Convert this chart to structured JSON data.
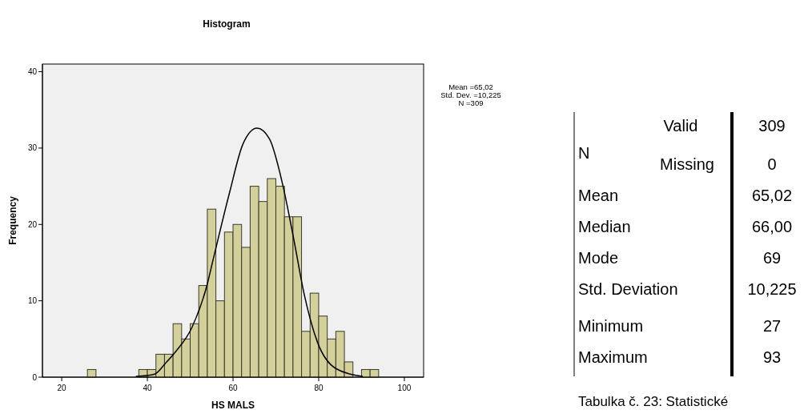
{
  "chart_data": [
    {
      "type": "histogram",
      "title": "Histogram",
      "xlabel": "HS MALS",
      "ylabel": "Frequency",
      "xlim": [
        15.5,
        104.5
      ],
      "ylim": [
        0,
        41
      ],
      "xticks": [
        20,
        40,
        60,
        80,
        100
      ],
      "yticks": [
        0,
        10,
        20,
        30,
        40
      ],
      "grid": false,
      "annotations": [
        "Mean =65,02",
        "Std. Dev. =10,225",
        "N =309"
      ],
      "series": [
        {
          "type": "histogram",
          "color": "#d4d09c",
          "bins": [
            26,
            28,
            30,
            32,
            34,
            36,
            38,
            40,
            42,
            44,
            46,
            48,
            50,
            52,
            54,
            56,
            58,
            60,
            62,
            64,
            66,
            68,
            70,
            72,
            74,
            76,
            78,
            80,
            82,
            84,
            86,
            88,
            90,
            92,
            94
          ],
          "values": [
            1,
            0,
            0,
            0,
            0,
            0,
            1,
            1,
            3,
            3,
            7,
            5,
            7,
            12,
            22,
            10,
            19,
            20,
            17,
            25,
            23,
            26,
            25,
            21,
            21,
            6,
            11,
            8,
            5,
            6,
            2,
            0,
            1,
            1
          ]
        },
        {
          "type": "line",
          "color": "#000000",
          "x": [
            37.3,
            41.7,
            44.2,
            46.7,
            50.4,
            53.9,
            55.4,
            59.2,
            62.3,
            65.6,
            68.5,
            71.6,
            74.1,
            76.6,
            79.7,
            84.1,
            90.3
          ],
          "values": [
            0.1,
            0.4,
            1.8,
            3.4,
            6.5,
            12.0,
            15.5,
            24.2,
            30.5,
            32.6,
            31.2,
            25.2,
            18.3,
            10.9,
            4.6,
            1.1,
            0.1
          ]
        }
      ]
    },
    {
      "type": "other",
      "annotations": [
        "Valid",
        "309",
        "N",
        "Missing",
        "0",
        "Mean",
        "65,02",
        "Median",
        "66,00",
        "Mode",
        "69",
        "Std. Deviation",
        "10,225",
        "Minimum",
        "27",
        "Maximum",
        "93",
        "Tabulka č. 23: Statistické"
      ]
    }
  ]
}
